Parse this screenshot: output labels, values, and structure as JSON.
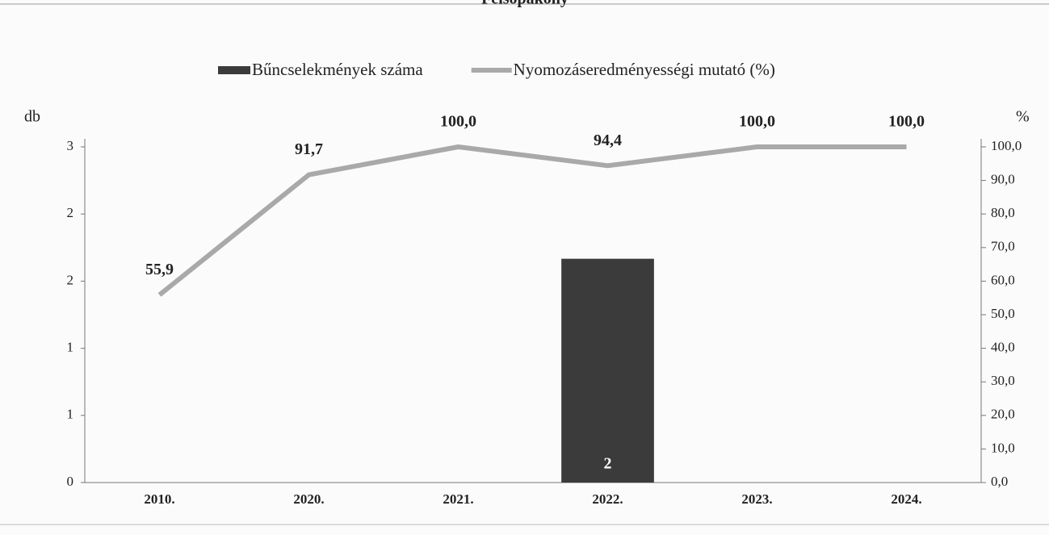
{
  "chart_data": {
    "type": "bar+line",
    "title": "Felsőpakony",
    "ylabel": "db",
    "y2label": "%",
    "categories": [
      "2010.",
      "2020.",
      "2021.",
      "2022.",
      "2023.",
      "2024."
    ],
    "series": [
      {
        "name": "Bűncselekmények száma",
        "type": "bar",
        "color": "#3b3b3b",
        "values": [
          null,
          null,
          null,
          2,
          null,
          null
        ]
      },
      {
        "name": "Nyomozáseredményességi mutató (%)",
        "type": "line",
        "axis": "y2",
        "color": "#a9a9a9",
        "values": [
          55.9,
          91.7,
          100,
          94.4,
          100,
          100
        ],
        "value_labels": [
          "55,9",
          "91,7",
          "100,0",
          "94,4",
          "100,0",
          "100,0"
        ]
      }
    ],
    "ylim": [
      0,
      3
    ],
    "yticks": [
      0,
      {
        "value": 0.6,
        "label": "1"
      },
      {
        "value": 1.2,
        "label": "1"
      },
      {
        "value": 1.8,
        "label": "2"
      },
      {
        "value": 2.4,
        "label": "2"
      },
      3
    ],
    "y2lim": [
      0,
      100
    ],
    "y2ticks": [
      {
        "value": 0,
        "label": "0,0"
      },
      {
        "value": 10,
        "label": "10,0"
      },
      {
        "value": 20,
        "label": "20,0"
      },
      {
        "value": 30,
        "label": "30,0"
      },
      {
        "value": 40,
        "label": "40,0"
      },
      {
        "value": 50,
        "label": "50,0"
      },
      {
        "value": 60,
        "label": "60,0"
      },
      {
        "value": 70,
        "label": "70,0"
      },
      {
        "value": 80,
        "label": "80,0"
      },
      {
        "value": 90,
        "label": "90,0"
      },
      {
        "value": 100,
        "label": "100,0"
      }
    ],
    "legend": "top"
  }
}
